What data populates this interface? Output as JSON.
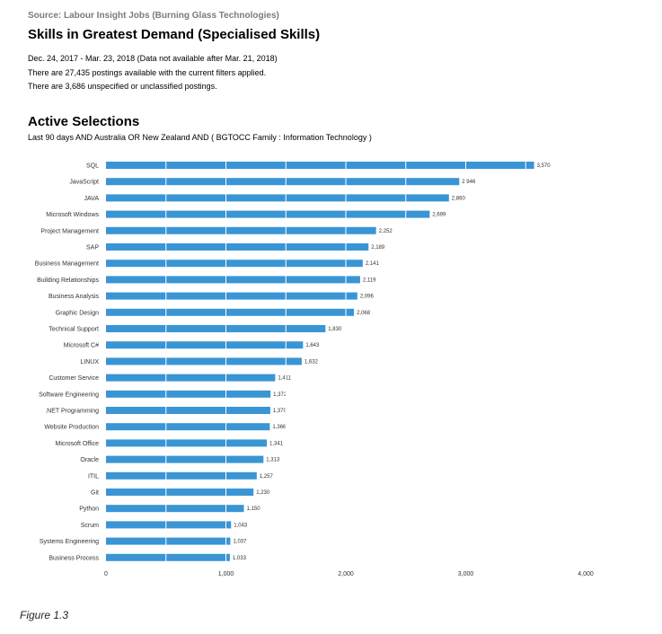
{
  "source": "Source: Labour Insight Jobs (Burning Glass Technologies)",
  "title": "Skills in Greatest Demand (Specialised Skills)",
  "info": {
    "dates": "Dec.  24, 2017  - Mar.  23, 2018  (Data not available after  Mar.  21, 2018)",
    "postings": "There are 27,435 postings available with the current filters applied.",
    "unspecified": "There are 3,686 unspecified or unclassified postings."
  },
  "selections": {
    "title": "Active Selections",
    "subtitle": "Last 90 days AND Australia OR New Zealand AND ( BGTOCC Family : Information Technology )"
  },
  "caption": "Figure 1.3",
  "colors": {
    "bar": "#3a95d4",
    "grid": "#ffffff"
  },
  "chart_data": {
    "type": "bar",
    "orientation": "horizontal",
    "categories": [
      "SQL",
      "JavaScript",
      "JAVA",
      "Microsoft Windows",
      "Project Management",
      "SAP",
      "Business Management",
      "Building Relationships",
      "Business Analysis",
      "Graphic Design",
      "Technical Support",
      "Microsoft C#",
      "LINUX",
      "Customer Service",
      "Software Engineering",
      ".NET Programming",
      "Website Production",
      "Microsoft Office",
      "Oracle",
      "ITIL",
      "Git",
      "Python",
      "Scrum",
      "Systems Engineering",
      "Business Process"
    ],
    "values": [
      3570,
      2946,
      2860,
      2699,
      2252,
      2189,
      2141,
      2119,
      2096,
      2068,
      1830,
      1643,
      1632,
      1411,
      1372,
      1370,
      1366,
      1341,
      1313,
      1257,
      1230,
      1150,
      1043,
      1037,
      1033
    ],
    "value_labels": [
      "3,570",
      "2,946",
      "2,860",
      "2,699",
      "2,252",
      "2,189",
      "2,141",
      "2,119",
      "2,096",
      "2,068",
      "1,830",
      "1,643",
      "1,632",
      "1,411",
      "1,372",
      "1,370",
      "1,366",
      "1,341",
      "1,313",
      "1,257",
      "1,230",
      "1,150",
      "1,043",
      "1,037",
      "1,033"
    ],
    "xticks": [
      0,
      1000,
      2000,
      3000,
      4000
    ],
    "xtick_labels": [
      "0",
      "1,000",
      "2,000",
      "3,000",
      "4,000"
    ],
    "xlim": [
      0,
      4000
    ],
    "grid": true,
    "legend": false
  }
}
